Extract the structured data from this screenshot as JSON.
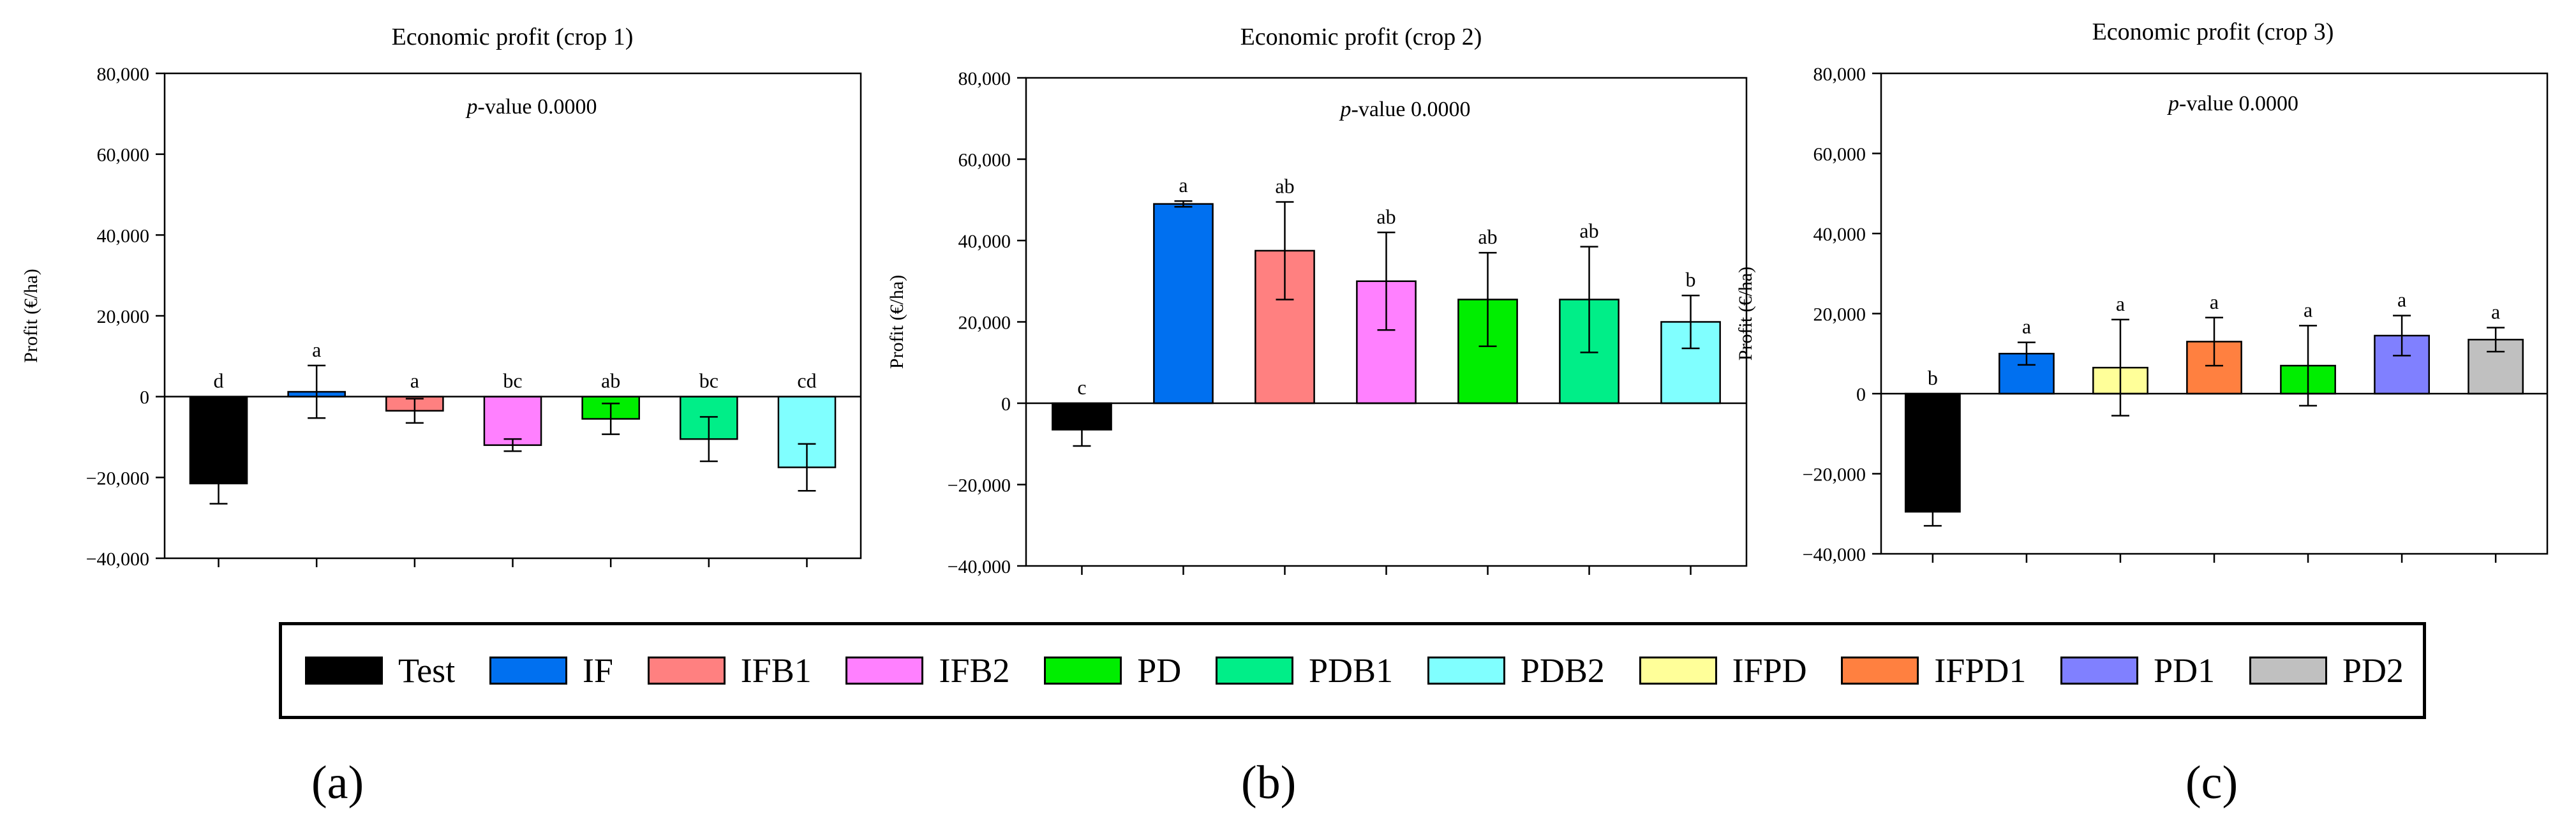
{
  "figure": {
    "legend_title": "",
    "panel_labels": [
      "(a)",
      "(b)",
      "(c)"
    ]
  },
  "legend": [
    {
      "name": "Test",
      "color": "#000000"
    },
    {
      "name": "IF",
      "color": "#0070f0"
    },
    {
      "name": "IFB1",
      "color": "#ff8080"
    },
    {
      "name": "IFB2",
      "color": "#ff80ff"
    },
    {
      "name": "PD",
      "color": "#00ee00"
    },
    {
      "name": "PDB1",
      "color": "#00ee88"
    },
    {
      "name": "PDB2",
      "color": "#80ffff"
    },
    {
      "name": "IFPD",
      "color": "#ffff99"
    },
    {
      "name": "IFPD1",
      "color": "#ff8040"
    },
    {
      "name": "PD1",
      "color": "#8080ff"
    },
    {
      "name": "PD2",
      "color": "#c0c0c0"
    }
  ],
  "chart_data": [
    {
      "type": "bar",
      "title": "Economic profit  (crop 1)",
      "annotation_prefix": "p",
      "annotation_rest": "-value 0.0000",
      "ylabel": "Profit (€/ha)",
      "xlabel": "",
      "ylim": [
        -40000,
        80000
      ],
      "yticks": [
        80000,
        60000,
        40000,
        20000,
        0,
        -20000,
        -40000
      ],
      "ytick_labels": [
        "80,000",
        "60,000",
        "40,000",
        "20,000",
        "0",
        "−20,000",
        "−40,000"
      ],
      "categories": [
        "Test",
        "IF",
        "IFB1",
        "IFB2",
        "PD",
        "PDB1",
        "PDB2"
      ],
      "values": [
        -21500,
        1200,
        -3500,
        -12000,
        -5500,
        -10500,
        -17500
      ],
      "errors": [
        5000,
        6500,
        3000,
        1500,
        3800,
        5500,
        5800
      ],
      "letters": [
        "d",
        "a",
        "a",
        "bc",
        "ab",
        "bc",
        "cd"
      ],
      "colors": [
        "#000000",
        "#0070f0",
        "#ff8080",
        "#ff80ff",
        "#00ee00",
        "#00ee88",
        "#80ffff"
      ]
    },
    {
      "type": "bar",
      "title": "Economic profit (crop 2)",
      "annotation_prefix": "p",
      "annotation_rest": "-value 0.0000",
      "ylabel": "Profit (€/ha)",
      "xlabel": "",
      "ylim": [
        -40000,
        80000
      ],
      "yticks": [
        80000,
        60000,
        40000,
        20000,
        0,
        -20000,
        -40000
      ],
      "ytick_labels": [
        "80,000",
        "60,000",
        "40,000",
        "20,000",
        "0",
        "−20,000",
        "−40,000"
      ],
      "categories": [
        "Test",
        "IF",
        "IFB1",
        "IFB2",
        "PD",
        "PDB1",
        "PDB2"
      ],
      "values": [
        -6500,
        49000,
        37500,
        30000,
        25500,
        25500,
        20000
      ],
      "errors": [
        4000,
        700,
        12000,
        12000,
        11500,
        13000,
        6500
      ],
      "letters": [
        "c",
        "a",
        "ab",
        "ab",
        "ab",
        "ab",
        "b"
      ],
      "colors": [
        "#000000",
        "#0070f0",
        "#ff8080",
        "#ff80ff",
        "#00ee00",
        "#00ee88",
        "#80ffff"
      ]
    },
    {
      "type": "bar",
      "title": "Economic profit (crop 3)",
      "annotation_prefix": "p",
      "annotation_rest": "-value 0.0000",
      "ylabel": "Profit (€/ha)",
      "xlabel": "",
      "ylim": [
        -40000,
        80000
      ],
      "yticks": [
        80000,
        60000,
        40000,
        20000,
        0,
        -20000,
        -40000
      ],
      "ytick_labels": [
        "80,000",
        "60,000",
        "40,000",
        "20,000",
        "0",
        "−20,000",
        "−40,000"
      ],
      "categories": [
        "Test",
        "IF",
        "IFPD",
        "IFPD1",
        "PD",
        "PD1",
        "PD2"
      ],
      "values": [
        -29500,
        10000,
        6500,
        13000,
        7000,
        14500,
        13500
      ],
      "errors": [
        3500,
        2800,
        12000,
        6000,
        10000,
        5000,
        3000
      ],
      "letters": [
        "b",
        "a",
        "a",
        "a",
        "a",
        "a",
        "a"
      ],
      "colors": [
        "#000000",
        "#0070f0",
        "#ffff99",
        "#ff8040",
        "#00ee00",
        "#8080ff",
        "#c0c0c0"
      ]
    }
  ]
}
